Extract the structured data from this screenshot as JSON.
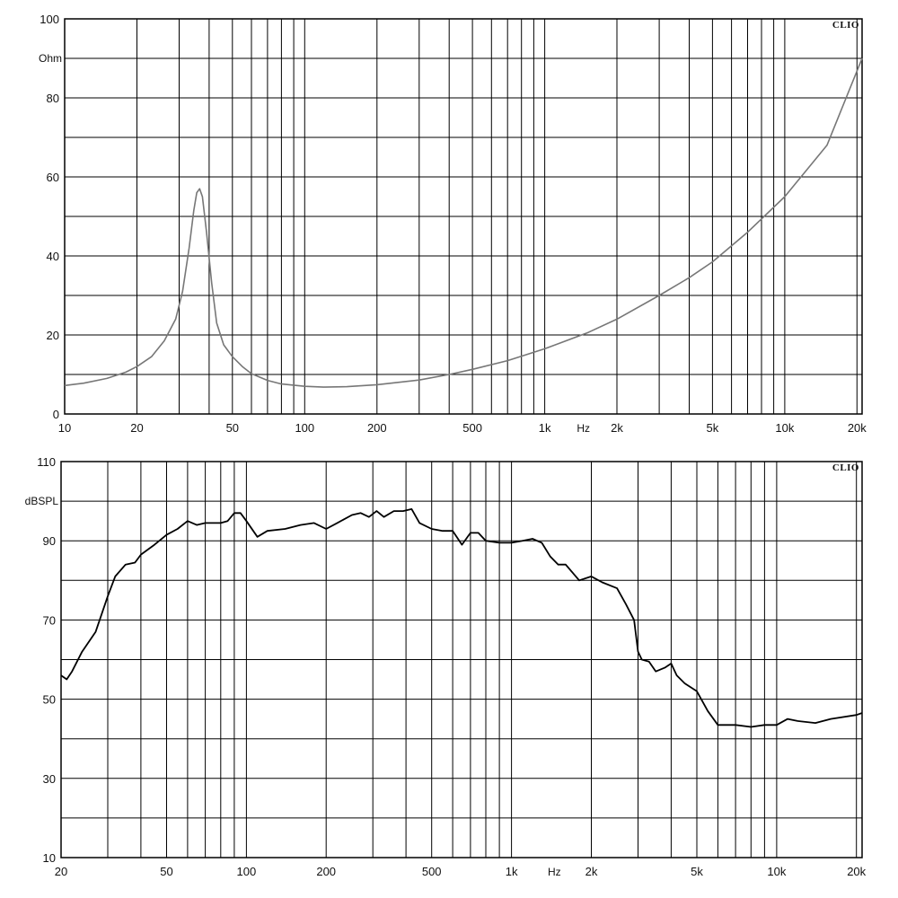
{
  "chart_data": [
    {
      "type": "line",
      "brand": "CLIO",
      "ylabel": "Ohm",
      "xunit": "Hz",
      "xscale": "log",
      "xlim": [
        10,
        21000
      ],
      "ylim": [
        0,
        100
      ],
      "grid": true,
      "x_ticks": [
        {
          "value": 10,
          "label": "10"
        },
        {
          "value": 20,
          "label": "20"
        },
        {
          "value": 50,
          "label": "50"
        },
        {
          "value": 100,
          "label": "100"
        },
        {
          "value": 200,
          "label": "200"
        },
        {
          "value": 500,
          "label": "500"
        },
        {
          "value": 1000,
          "label": "1k"
        },
        {
          "value": 2000,
          "label": "2k"
        },
        {
          "value": 5000,
          "label": "5k"
        },
        {
          "value": 10000,
          "label": "10k"
        },
        {
          "value": 20000,
          "label": "20k"
        }
      ],
      "y_ticks": [
        {
          "value": 0,
          "label": "0"
        },
        {
          "value": 20,
          "label": "20"
        },
        {
          "value": 40,
          "label": "40"
        },
        {
          "value": 60,
          "label": "60"
        },
        {
          "value": 80,
          "label": "80"
        },
        {
          "value": 100,
          "label": "100"
        }
      ],
      "color": "#777777",
      "series": [
        {
          "x": [
            10,
            12,
            15,
            18,
            20,
            23,
            26,
            29,
            31,
            33,
            34.5,
            35.5,
            36.5,
            37.5,
            39,
            41,
            43,
            46,
            50,
            55,
            60,
            70,
            80,
            100,
            120,
            150,
            200,
            300,
            400,
            500,
            700,
            1000,
            1500,
            2000,
            3000,
            4000,
            5000,
            7000,
            10000,
            15000,
            21000
          ],
          "y": [
            7.2,
            7.8,
            9.0,
            10.6,
            12.0,
            14.5,
            18.5,
            24.0,
            31.0,
            42.0,
            51.5,
            56.0,
            57.0,
            55.0,
            46.0,
            33.0,
            23.0,
            17.5,
            14.5,
            12.0,
            10.2,
            8.5,
            7.6,
            7.0,
            6.8,
            6.9,
            7.4,
            8.6,
            10.0,
            11.3,
            13.5,
            16.5,
            20.5,
            24.0,
            30.0,
            34.5,
            38.5,
            46.0,
            55.0,
            68.0,
            90.0
          ]
        }
      ]
    },
    {
      "type": "line",
      "brand": "CLIO",
      "ylabel": "dBSPL",
      "xunit": "Hz",
      "xscale": "log",
      "xlim": [
        20,
        21000
      ],
      "ylim": [
        10,
        110
      ],
      "grid": true,
      "x_ticks": [
        {
          "value": 20,
          "label": "20"
        },
        {
          "value": 50,
          "label": "50"
        },
        {
          "value": 100,
          "label": "100"
        },
        {
          "value": 200,
          "label": "200"
        },
        {
          "value": 500,
          "label": "500"
        },
        {
          "value": 1000,
          "label": "1k"
        },
        {
          "value": 2000,
          "label": "2k"
        },
        {
          "value": 5000,
          "label": "5k"
        },
        {
          "value": 10000,
          "label": "10k"
        },
        {
          "value": 20000,
          "label": "20k"
        }
      ],
      "y_ticks": [
        {
          "value": 10,
          "label": "10"
        },
        {
          "value": 30,
          "label": "30"
        },
        {
          "value": 50,
          "label": "50"
        },
        {
          "value": 70,
          "label": "70"
        },
        {
          "value": 90,
          "label": "90"
        },
        {
          "value": 110,
          "label": "110"
        }
      ],
      "color": "#000000",
      "series": [
        {
          "x": [
            20,
            21,
            22,
            24,
            27,
            30,
            32,
            35,
            38,
            40,
            45,
            50,
            55,
            60,
            65,
            70,
            80,
            85,
            90,
            95,
            100,
            110,
            120,
            140,
            160,
            180,
            200,
            220,
            250,
            270,
            290,
            310,
            330,
            360,
            390,
            420,
            450,
            500,
            550,
            600,
            650,
            700,
            750,
            800,
            900,
            1000,
            1100,
            1200,
            1300,
            1400,
            1500,
            1600,
            1800,
            2000,
            2200,
            2500,
            2700,
            2900,
            3000,
            3100,
            3300,
            3500,
            3800,
            4000,
            4200,
            4500,
            5000,
            5500,
            6000,
            7000,
            8000,
            9000,
            10000,
            11000,
            12000,
            14000,
            16000,
            20000,
            21000
          ],
          "y": [
            56,
            55,
            57,
            62,
            67,
            76,
            81,
            84,
            84.5,
            86.5,
            89,
            91.5,
            93,
            95,
            94,
            94.5,
            94.5,
            95,
            97,
            97,
            95,
            91,
            92.5,
            93,
            94,
            94.5,
            93,
            94.5,
            96.5,
            97,
            96,
            97.5,
            96,
            97.5,
            97.5,
            98,
            94.5,
            93,
            92.5,
            92.5,
            89,
            92,
            92,
            90,
            89.5,
            89.5,
            90,
            90.5,
            89.5,
            86,
            84,
            84,
            80,
            81,
            79.5,
            78,
            74,
            70,
            62,
            60,
            59.5,
            57,
            58,
            59,
            56,
            54,
            52,
            47,
            43.5,
            43.5,
            43,
            43.5,
            43.5,
            45,
            44.5,
            44,
            45,
            46,
            46.5
          ]
        }
      ]
    }
  ]
}
